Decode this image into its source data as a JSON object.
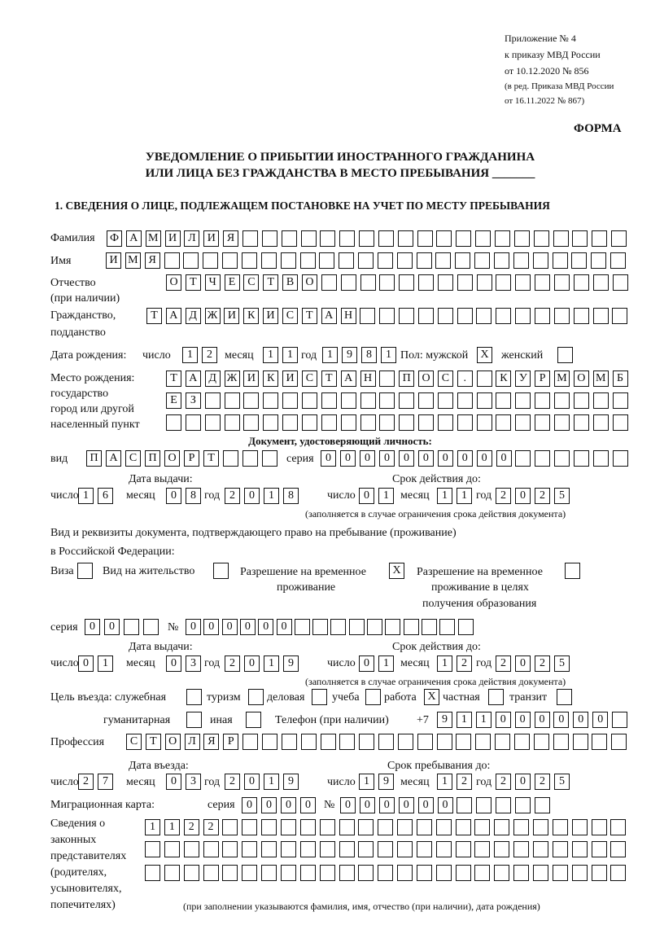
{
  "header": {
    "appendix": "Приложение № 4",
    "order": "к приказу МВД России",
    "order_date": "от 10.12.2020 № 856",
    "revision_1": "(в ред. Приказа МВД России",
    "revision_2": "от 16.11.2022 № 867)",
    "form_label": "ФОРМА",
    "title_1": "УВЕДОМЛЕНИЕ О ПРИБЫТИИ ИНОСТРАННОГО ГРАЖДАНИНА",
    "title_2": "ИЛИ ЛИЦА БЕЗ ГРАЖДАНСТВА В МЕСТО ПРЕБЫВАНИЯ _______",
    "section_1": "1. СВЕДЕНИЯ О ЛИЦЕ, ПОДЛЕЖАЩЕМ ПОСТАНОВКЕ НА УЧЕТ ПО МЕСТУ ПРЕБЫВАНИЯ"
  },
  "labels": {
    "surname": "Фамилия",
    "given_name": "Имя",
    "patronymic_1": "Отчество",
    "patronymic_2": "(при наличии)",
    "citizenship_1": "Гражданство,",
    "citizenship_2": "подданство",
    "birth_date": "Дата рождения:",
    "day": "число",
    "month": "месяц",
    "year": "год",
    "sex": "Пол: мужской",
    "female": "женский",
    "birthplace_1": "Место рождения:",
    "birthplace_2": "государство",
    "birthplace_3": "город или другой",
    "birthplace_4": "населенный пункт",
    "id_doc": "Документ, удостоверяющий личность:",
    "kind": "вид",
    "series": "серия",
    "number": "№",
    "issue_date": "Дата выдачи:",
    "valid_until": "Срок действия до:",
    "validity_note": "(заполняется в случае ограничения срока действия документа)",
    "residence_doc_1": "Вид и реквизиты документа, подтверждающего право на пребывание (проживание)",
    "residence_doc_2": "в Российской Федерации:",
    "visa": "Виза",
    "residence_permit": "Вид на жительство",
    "trp_1": "Разрешение на временное",
    "trp_2": "проживание",
    "trp_edu_1": "Разрешение на временное",
    "trp_edu_2": "проживание в целях",
    "trp_edu_3": "получения образования",
    "purpose": "Цель въезда: служебная",
    "tourism": "туризм",
    "business": "деловая",
    "study": "учеба",
    "work": "работа",
    "private": "частная",
    "transit": "транзит",
    "humanitarian": "гуманитарная",
    "other": "иная",
    "phone": "Телефон (при наличии)",
    "phone_prefix": "+7",
    "profession": "Профессия",
    "entry_date": "Дата въезда:",
    "stay_until": "Срок пребывания до:",
    "migration_card": "Миграционная карта:",
    "reps_1": "Сведения о",
    "reps_2": "законных",
    "reps_3": "представителях",
    "reps_4": "(родителях,",
    "reps_5": "усыновителях,",
    "reps_6": "попечителях)",
    "reps_note": "(при заполнении указываются фамилия, имя, отчество (при наличии), дата рождения)"
  },
  "fields": {
    "surname": {
      "value": "ФАМИЛИЯ",
      "cells": 27
    },
    "given_name": {
      "value": "ИМЯ",
      "cells": 27
    },
    "patronymic": {
      "value": "ОТЧЕСТВО",
      "cells": 24
    },
    "citizenship": {
      "value": "ТАДЖИКИСТАН",
      "cells": 25
    },
    "birth_day": {
      "value": "12",
      "cells": 2
    },
    "birth_month": {
      "value": "11",
      "cells": 2
    },
    "birth_year": {
      "value": "1981",
      "cells": 4
    },
    "sex_male": {
      "value": "X",
      "cells": 1
    },
    "sex_female": {
      "value": "",
      "cells": 1
    },
    "birthplace_1": {
      "value": "ТАДЖИКИСТАН ПОС. КУРМОМБ",
      "cells": 24
    },
    "birthplace_2": {
      "value": "ЕЗ",
      "cells": 24
    },
    "birthplace_3": {
      "value": "",
      "cells": 24
    },
    "id_kind": {
      "value": "ПАСПОРТ",
      "cells": 10
    },
    "id_series": {
      "value": "0000",
      "cells": 4
    },
    "id_number": {
      "value": "000000",
      "cells": 12
    },
    "id_issue_day": {
      "value": "16",
      "cells": 2
    },
    "id_issue_month": {
      "value": "08",
      "cells": 2
    },
    "id_issue_year": {
      "value": "2018",
      "cells": 4
    },
    "id_valid_day": {
      "value": "01",
      "cells": 2
    },
    "id_valid_month": {
      "value": "11",
      "cells": 2
    },
    "id_valid_year": {
      "value": "2025",
      "cells": 4
    },
    "visa": {
      "value": "",
      "cells": 1
    },
    "residence_permit": {
      "value": "",
      "cells": 1
    },
    "trp": {
      "value": "X",
      "cells": 1
    },
    "trp_edu": {
      "value": "",
      "cells": 1
    },
    "rd_series": {
      "value": "00",
      "cells": 4
    },
    "rd_number": {
      "value": "000000",
      "cells": 16
    },
    "rd_issue_day": {
      "value": "01",
      "cells": 2
    },
    "rd_issue_month": {
      "value": "03",
      "cells": 2
    },
    "rd_issue_year": {
      "value": "2019",
      "cells": 4
    },
    "rd_valid_day": {
      "value": "01",
      "cells": 2
    },
    "rd_valid_month": {
      "value": "12",
      "cells": 2
    },
    "rd_valid_year": {
      "value": "2025",
      "cells": 4
    },
    "purpose_official": {
      "value": "",
      "cells": 1
    },
    "purpose_tourism": {
      "value": "",
      "cells": 1
    },
    "purpose_business": {
      "value": "",
      "cells": 1
    },
    "purpose_study": {
      "value": "",
      "cells": 1
    },
    "purpose_work": {
      "value": "X",
      "cells": 1
    },
    "purpose_private": {
      "value": "",
      "cells": 1
    },
    "purpose_transit": {
      "value": "",
      "cells": 1
    },
    "purpose_humanitarian": {
      "value": "",
      "cells": 1
    },
    "purpose_other": {
      "value": "",
      "cells": 1
    },
    "phone": {
      "value": "911000000",
      "cells": 10
    },
    "profession": {
      "value": "СТОЛЯР",
      "cells": 26
    },
    "entry_day": {
      "value": "27",
      "cells": 2
    },
    "entry_month": {
      "value": "03",
      "cells": 2
    },
    "entry_year": {
      "value": "2019",
      "cells": 4
    },
    "stay_day": {
      "value": "19",
      "cells": 2
    },
    "stay_month": {
      "value": "12",
      "cells": 2
    },
    "stay_year": {
      "value": "2025",
      "cells": 4
    },
    "mc_series": {
      "value": "0000",
      "cells": 4
    },
    "mc_number": {
      "value": "000000",
      "cells": 11
    },
    "reps_1": {
      "value": "1122",
      "cells": 25
    },
    "reps_2": {
      "value": "",
      "cells": 25
    },
    "reps_3": {
      "value": "",
      "cells": 25
    }
  }
}
